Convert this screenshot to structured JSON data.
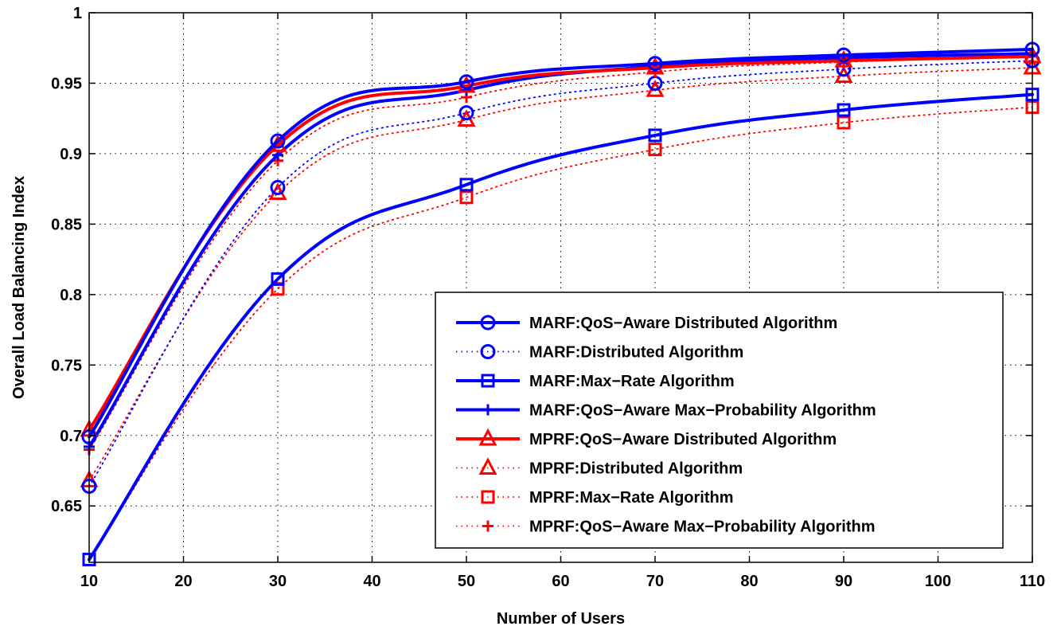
{
  "chart_data": {
    "type": "line",
    "title": "",
    "xlabel": "Number of Users",
    "ylabel": "Overall Load Balancing Index",
    "x": [
      10,
      30,
      50,
      70,
      90,
      110
    ],
    "xlim": [
      10,
      110
    ],
    "ylim": [
      0.61,
      1.0
    ],
    "xticks": [
      10,
      20,
      30,
      40,
      50,
      60,
      70,
      80,
      90,
      100,
      110
    ],
    "yticks": [
      0.65,
      0.7,
      0.75,
      0.8,
      0.85,
      0.9,
      0.95,
      1
    ],
    "ytick_labels": [
      "0.65",
      "0.7",
      "0.75",
      "0.8",
      "0.85",
      "0.9",
      "0.95",
      "1"
    ],
    "grid": true,
    "legend_position": "bottom-right",
    "series": [
      {
        "name": "MARF:QoS−Aware Distributed Algorithm",
        "values": [
          0.699,
          0.909,
          0.951,
          0.964,
          0.97,
          0.974
        ],
        "color": "#0000ff",
        "line": "solid",
        "marker": "circle"
      },
      {
        "name": "MARF:Distributed Algorithm",
        "values": [
          0.664,
          0.876,
          0.929,
          0.95,
          0.96,
          0.966
        ],
        "color": "#0000ff",
        "line": "dotted",
        "marker": "circle"
      },
      {
        "name": "MARF:Max−Rate Algorithm",
        "values": [
          0.612,
          0.811,
          0.878,
          0.913,
          0.931,
          0.942
        ],
        "color": "#0000ff",
        "line": "solid",
        "marker": "square"
      },
      {
        "name": "MARF:QoS−Aware Max−Probability Algorithm",
        "values": [
          0.692,
          0.899,
          0.945,
          0.962,
          0.968,
          0.971
        ],
        "color": "#0000ff",
        "line": "solid",
        "marker": "plus"
      },
      {
        "name": "MPRF:QoS−Aware Distributed Algorithm",
        "values": [
          0.704,
          0.906,
          0.948,
          0.961,
          0.966,
          0.969
        ],
        "color": "#ff0000",
        "line": "solid",
        "marker": "triangle"
      },
      {
        "name": "MPRF:Distributed Algorithm",
        "values": [
          0.668,
          0.872,
          0.924,
          0.945,
          0.955,
          0.961
        ],
        "color": "#ff0000",
        "line": "dotted",
        "marker": "triangle"
      },
      {
        "name": "MPRF:Max−Rate Algorithm",
        "values": [
          0.612,
          0.804,
          0.869,
          0.903,
          0.922,
          0.933
        ],
        "color": "#ff0000",
        "line": "dotted",
        "marker": "square"
      },
      {
        "name": "MPRF:QoS−Aware Max−Probability Algorithm",
        "values": [
          0.69,
          0.895,
          0.94,
          0.958,
          0.965,
          0.969
        ],
        "color": "#ff0000",
        "line": "dotted",
        "marker": "plus"
      }
    ]
  }
}
